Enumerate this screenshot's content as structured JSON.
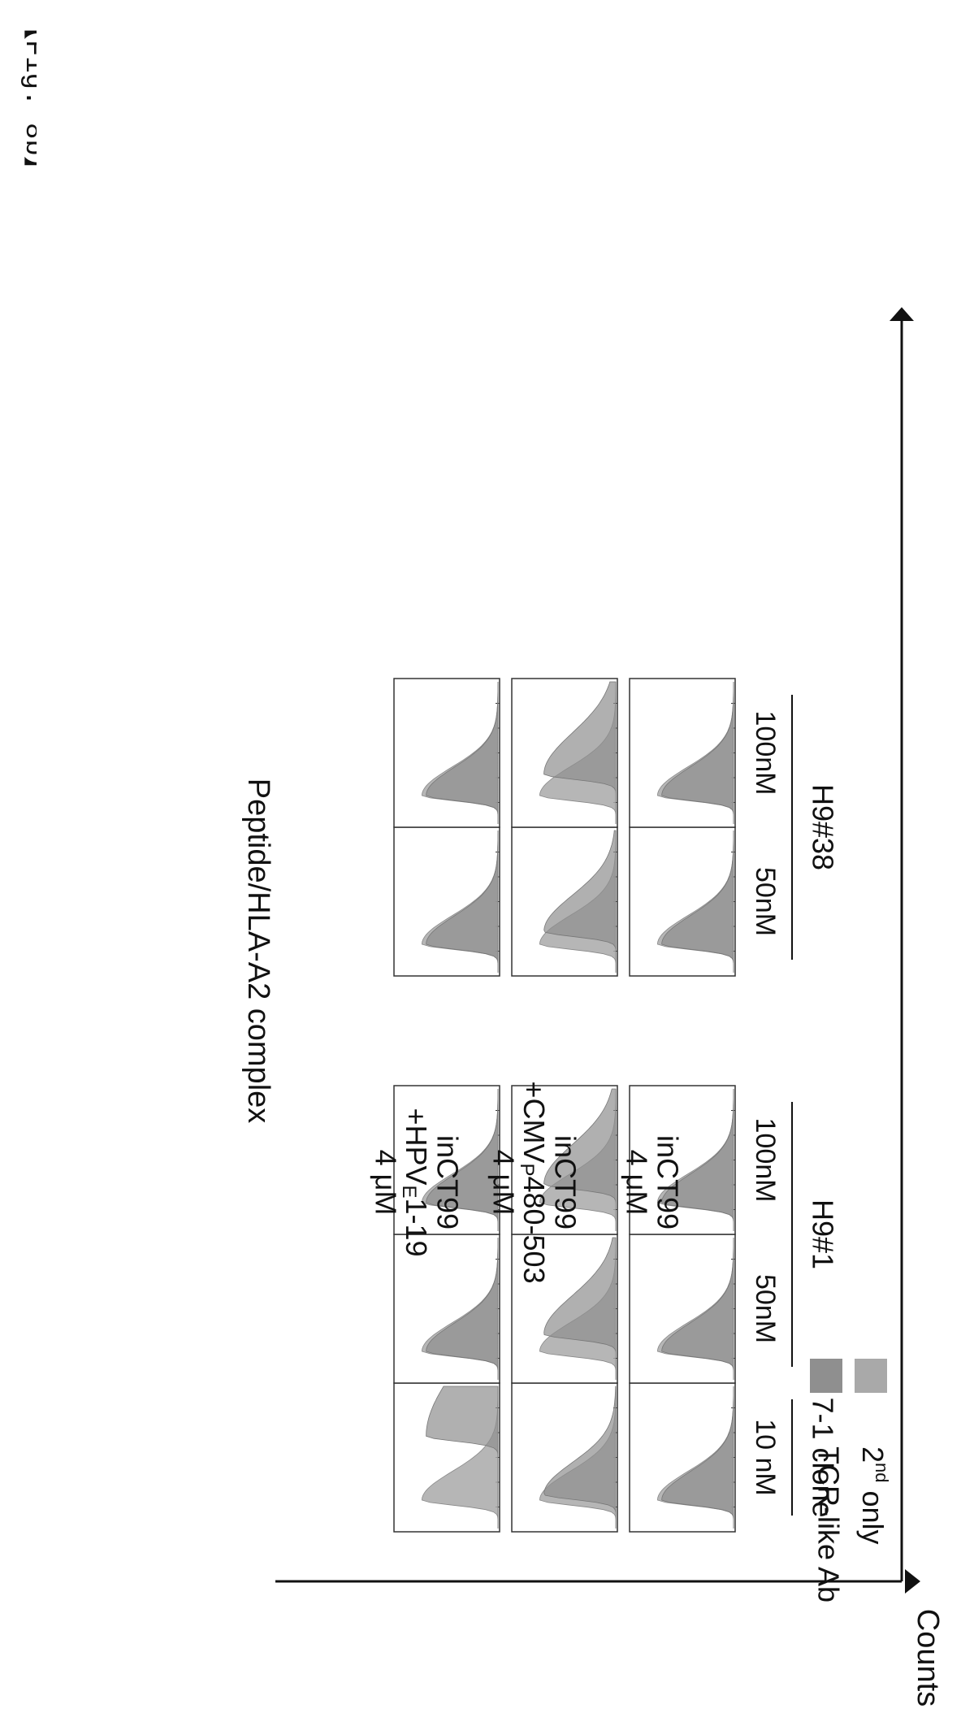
{
  "figure_label": "【Fig. 8b】",
  "chart_data": {
    "type": "histogram-grid",
    "y_axis_label": "Counts",
    "x_axis_label": "Peptide/HLA-A2 complex",
    "column_groups": [
      {
        "label": "7-1 clone",
        "columns": [
          "10 nM"
        ]
      },
      {
        "label": "H9#1",
        "columns": [
          "50nM",
          "100nM"
        ]
      },
      {
        "label": "H9#38",
        "columns": [
          "50nM",
          "100nM"
        ]
      }
    ],
    "rows": [
      {
        "lines": [
          "inCT99",
          "4 μM"
        ]
      },
      {
        "lines": [
          "inCT99",
          "+CMVP480-503",
          "4 μM"
        ],
        "line2_parts": {
          "pre": "+CMV",
          "sub": "P",
          "post": "480-503"
        }
      },
      {
        "lines": [
          "inCT99",
          "+HPVE1-19",
          "4 μM"
        ],
        "line2_parts": {
          "pre": "+HPV",
          "sub": "E",
          "post": "1-19"
        }
      }
    ],
    "legend": [
      {
        "name": "2nd only",
        "sup_parts": {
          "pre": "2",
          "sup": "nd",
          "post": " only"
        },
        "color": "#a9a9a9"
      },
      {
        "name": "TCR-like Ab",
        "color": "#8f8f8f"
      }
    ],
    "shift": [
      [
        0.0,
        0.0,
        0.0,
        0.0,
        0.0
      ],
      [
        0.04,
        0.12,
        0.13,
        0.09,
        0.15
      ],
      [
        0.45,
        0.0,
        0.0,
        0.0,
        0.0
      ]
    ]
  }
}
